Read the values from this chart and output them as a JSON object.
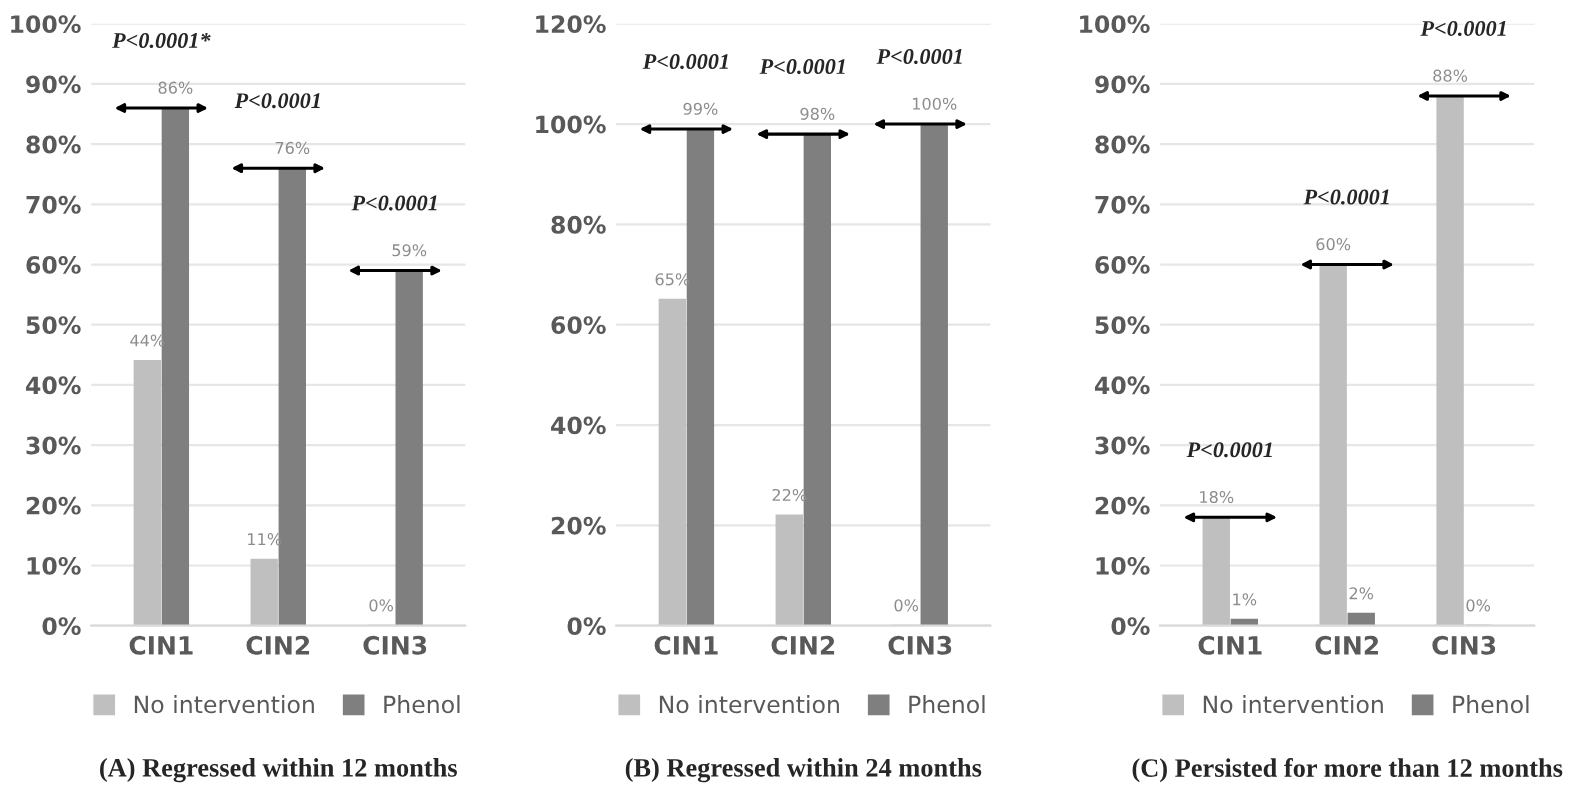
{
  "chart_data": [
    {
      "type": "bar",
      "title": "(A) Regressed within 12 months",
      "categories": [
        "CIN1",
        "CIN2",
        "CIN3"
      ],
      "series": [
        {
          "name": "No intervention",
          "color": "#bfbfbf",
          "values": [
            44,
            11,
            0
          ],
          "value_labels": [
            "44%",
            "11%",
            "0%"
          ]
        },
        {
          "name": "Phenol",
          "color": "#7f7f7f",
          "values": [
            86,
            76,
            59
          ],
          "value_labels": [
            "86%",
            "76%",
            "59%"
          ]
        }
      ],
      "ylim": [
        0,
        100
      ],
      "yticks": [
        {
          "value": 0,
          "label": "0%"
        },
        {
          "value": 10,
          "label": "10%"
        },
        {
          "value": 20,
          "label": "20%"
        },
        {
          "value": 30,
          "label": "30%"
        },
        {
          "value": 40,
          "label": "40%"
        },
        {
          "value": 50,
          "label": "50%"
        },
        {
          "value": 60,
          "label": "60%"
        },
        {
          "value": 70,
          "label": "70%"
        },
        {
          "value": 80,
          "label": "80%"
        },
        {
          "value": 90,
          "label": "90%"
        },
        {
          "value": 100,
          "label": "100%"
        }
      ],
      "annotations": [
        "P<0.0001*",
        "P<0.0001",
        "P<0.0001"
      ],
      "grid": "y",
      "legend": "bottom"
    },
    {
      "type": "bar",
      "title": "(B) Regressed within 24 months",
      "categories": [
        "CIN1",
        "CIN2",
        "CIN3"
      ],
      "series": [
        {
          "name": "No intervention",
          "color": "#bfbfbf",
          "values": [
            65,
            22,
            0
          ],
          "value_labels": [
            "65%",
            "22%",
            "0%"
          ]
        },
        {
          "name": "Phenol",
          "color": "#7f7f7f",
          "values": [
            99,
            98,
            100
          ],
          "value_labels": [
            "99%",
            "98%",
            "100%"
          ]
        }
      ],
      "ylim": [
        0,
        120
      ],
      "yticks": [
        {
          "value": 0,
          "label": "0%"
        },
        {
          "value": 20,
          "label": "20%"
        },
        {
          "value": 40,
          "label": "40%"
        },
        {
          "value": 60,
          "label": "60%"
        },
        {
          "value": 80,
          "label": "80%"
        },
        {
          "value": 100,
          "label": "100%"
        },
        {
          "value": 120,
          "label": "120%"
        }
      ],
      "annotations": [
        "P<0.0001",
        "P<0.0001",
        "P<0.0001"
      ],
      "grid": "y",
      "legend": "bottom"
    },
    {
      "type": "bar",
      "title": "(C) Persisted for more than 12 months",
      "categories": [
        "CIN1",
        "CIN2",
        "CIN3"
      ],
      "series": [
        {
          "name": "No intervention",
          "color": "#bfbfbf",
          "values": [
            18,
            60,
            88
          ],
          "value_labels": [
            "18%",
            "60%",
            "88%"
          ]
        },
        {
          "name": "Phenol",
          "color": "#7f7f7f",
          "values": [
            1,
            2,
            0
          ],
          "value_labels": [
            "1%",
            "2%",
            "0%"
          ]
        }
      ],
      "ylim": [
        0,
        100
      ],
      "yticks": [
        {
          "value": 0,
          "label": "0%"
        },
        {
          "value": 10,
          "label": "10%"
        },
        {
          "value": 20,
          "label": "20%"
        },
        {
          "value": 30,
          "label": "30%"
        },
        {
          "value": 40,
          "label": "40%"
        },
        {
          "value": 50,
          "label": "50%"
        },
        {
          "value": 60,
          "label": "60%"
        },
        {
          "value": 70,
          "label": "70%"
        },
        {
          "value": 80,
          "label": "80%"
        },
        {
          "value": 90,
          "label": "90%"
        },
        {
          "value": 100,
          "label": "100%"
        }
      ],
      "annotations": [
        "P<0.0001",
        "P<0.0001",
        "P<0.0001"
      ],
      "grid": "y",
      "legend": "bottom"
    }
  ]
}
